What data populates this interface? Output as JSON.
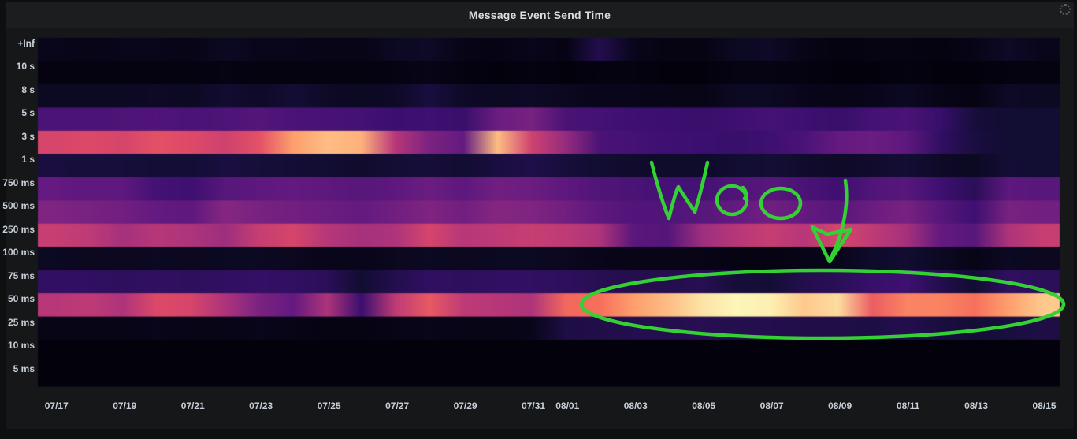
{
  "panel": {
    "title": "Message Event Send Time"
  },
  "colors": {
    "page_bg": "#0e0f11",
    "panel_bg": "#161718",
    "header_bg": "#1c1d1f",
    "axis_text": "#c7d0d9",
    "title_text": "#dcdde0",
    "annotation_green": "#33d133"
  },
  "annotation": {
    "text": "Woo",
    "description": "hand-drawn green 'Woo', a down arrow and an ellipse circling the bright 25-50 ms heatmap band from 08/01 to 08/15"
  },
  "spinner_label": "panel loading spinner",
  "chart_data": {
    "type": "heatmap",
    "title": "Message Event Send Time",
    "colormap": "magma",
    "value_scale": "relative bucket intensity 0-100 (100 = brightest / most events)",
    "legend": "none",
    "grid": "off",
    "x_days": [
      "07/17",
      "07/18",
      "07/19",
      "07/20",
      "07/21",
      "07/22",
      "07/23",
      "07/24",
      "07/25",
      "07/26",
      "07/27",
      "07/28",
      "07/29",
      "07/30",
      "07/31",
      "08/01",
      "08/02",
      "08/03",
      "08/04",
      "08/05",
      "08/06",
      "08/07",
      "08/08",
      "08/09",
      "08/10",
      "08/11",
      "08/12",
      "08/13",
      "08/14",
      "08/15"
    ],
    "x_tick_labels": [
      {
        "label": "07/17",
        "day": 0
      },
      {
        "label": "07/19",
        "day": 2
      },
      {
        "label": "07/21",
        "day": 4
      },
      {
        "label": "07/23",
        "day": 6
      },
      {
        "label": "07/25",
        "day": 8
      },
      {
        "label": "07/27",
        "day": 10
      },
      {
        "label": "07/29",
        "day": 12
      },
      {
        "label": "07/31",
        "day": 14
      },
      {
        "label": "08/01",
        "day": 15
      },
      {
        "label": "08/03",
        "day": 17
      },
      {
        "label": "08/05",
        "day": 19
      },
      {
        "label": "08/07",
        "day": 21
      },
      {
        "label": "08/09",
        "day": 23
      },
      {
        "label": "08/11",
        "day": 25
      },
      {
        "label": "08/13",
        "day": 27
      },
      {
        "label": "08/15",
        "day": 29
      }
    ],
    "y_buckets": [
      "+Inf",
      "10 s",
      "8 s",
      "5 s",
      "3 s",
      "1 s",
      "750 ms",
      "500 ms",
      "250 ms",
      "100 ms",
      "75 ms",
      "50 ms",
      "25 ms",
      "10 ms",
      "5 ms"
    ],
    "values": [
      [
        6,
        5,
        6,
        6,
        5,
        8,
        6,
        6,
        5,
        5,
        8,
        9,
        5,
        4,
        6,
        4,
        18,
        6,
        4,
        4,
        8,
        9,
        5,
        3,
        4,
        4,
        3,
        5,
        9,
        6
      ],
      [
        3,
        3,
        3,
        3,
        3,
        4,
        3,
        3,
        3,
        3,
        4,
        5,
        3,
        2,
        3,
        2,
        3,
        3,
        2,
        2,
        4,
        4,
        3,
        2,
        2,
        3,
        2,
        2,
        3,
        3
      ],
      [
        8,
        8,
        8,
        9,
        8,
        12,
        9,
        13,
        9,
        8,
        9,
        15,
        9,
        8,
        9,
        7,
        6,
        6,
        5,
        5,
        8,
        8,
        6,
        5,
        6,
        8,
        5,
        4,
        9,
        8
      ],
      [
        30,
        30,
        31,
        32,
        30,
        31,
        33,
        30,
        29,
        28,
        25,
        26,
        24,
        40,
        44,
        30,
        28,
        26,
        25,
        24,
        26,
        28,
        26,
        24,
        28,
        30,
        24,
        14,
        12,
        12
      ],
      [
        68,
        70,
        68,
        72,
        70,
        66,
        72,
        85,
        90,
        88,
        60,
        45,
        38,
        90,
        66,
        52,
        30,
        28,
        26,
        25,
        24,
        26,
        30,
        38,
        40,
        36,
        22,
        15,
        12,
        12
      ],
      [
        15,
        14,
        14,
        13,
        13,
        15,
        14,
        13,
        12,
        11,
        13,
        14,
        12,
        15,
        17,
        14,
        12,
        11,
        10,
        10,
        12,
        13,
        11,
        9,
        11,
        13,
        9,
        8,
        13,
        12
      ],
      [
        38,
        36,
        36,
        28,
        26,
        34,
        36,
        38,
        36,
        34,
        36,
        40,
        36,
        42,
        40,
        36,
        32,
        30,
        28,
        28,
        32,
        34,
        30,
        26,
        32,
        34,
        26,
        20,
        36,
        34
      ],
      [
        46,
        44,
        42,
        38,
        36,
        48,
        44,
        42,
        40,
        38,
        42,
        46,
        42,
        48,
        46,
        42,
        36,
        32,
        32,
        34,
        38,
        42,
        38,
        34,
        40,
        44,
        34,
        26,
        44,
        42
      ],
      [
        64,
        62,
        56,
        60,
        58,
        54,
        64,
        68,
        60,
        56,
        58,
        68,
        60,
        62,
        64,
        62,
        58,
        35,
        33,
        54,
        60,
        64,
        60,
        68,
        62,
        56,
        38,
        34,
        58,
        64
      ],
      [
        8,
        7,
        7,
        8,
        7,
        8,
        8,
        7,
        6,
        6,
        7,
        8,
        7,
        8,
        8,
        7,
        6,
        5,
        5,
        5,
        4,
        4,
        5,
        6,
        10,
        12,
        8,
        5,
        8,
        7
      ],
      [
        22,
        22,
        21,
        22,
        21,
        22,
        23,
        22,
        20,
        12,
        18,
        22,
        21,
        22,
        22,
        21,
        19,
        18,
        18,
        19,
        14,
        13,
        18,
        20,
        24,
        26,
        18,
        12,
        22,
        20
      ],
      [
        60,
        62,
        58,
        70,
        68,
        58,
        45,
        38,
        58,
        25,
        62,
        74,
        62,
        60,
        58,
        78,
        80,
        85,
        90,
        96,
        99,
        98,
        92,
        95,
        75,
        82,
        82,
        80,
        85,
        92
      ],
      [
        5,
        5,
        5,
        6,
        5,
        5,
        6,
        5,
        4,
        4,
        5,
        6,
        5,
        5,
        6,
        16,
        17,
        18,
        18,
        19,
        18,
        18,
        17,
        17,
        16,
        18,
        15,
        13,
        15,
        16
      ],
      [
        2,
        2,
        2,
        2,
        2,
        2,
        2,
        2,
        2,
        2,
        2,
        2,
        2,
        2,
        2,
        2,
        2,
        2,
        2,
        2,
        2,
        2,
        2,
        2,
        2,
        2,
        2,
        2,
        2,
        2
      ],
      [
        2,
        2,
        2,
        2,
        2,
        2,
        2,
        2,
        2,
        2,
        2,
        2,
        2,
        2,
        2,
        2,
        2,
        2,
        2,
        2,
        2,
        2,
        2,
        2,
        2,
        2,
        2,
        2,
        2,
        2
      ]
    ],
    "colormap_stops": [
      [
        0.0,
        "#000004"
      ],
      [
        0.13,
        "#140e36"
      ],
      [
        0.25,
        "#3b0f70"
      ],
      [
        0.38,
        "#641a80"
      ],
      [
        0.5,
        "#8c2981"
      ],
      [
        0.6,
        "#b73779"
      ],
      [
        0.7,
        "#de4968"
      ],
      [
        0.8,
        "#f7705c"
      ],
      [
        0.85,
        "#fe9f6d"
      ],
      [
        0.93,
        "#fecf92"
      ],
      [
        1.0,
        "#fcfdbf"
      ]
    ]
  }
}
